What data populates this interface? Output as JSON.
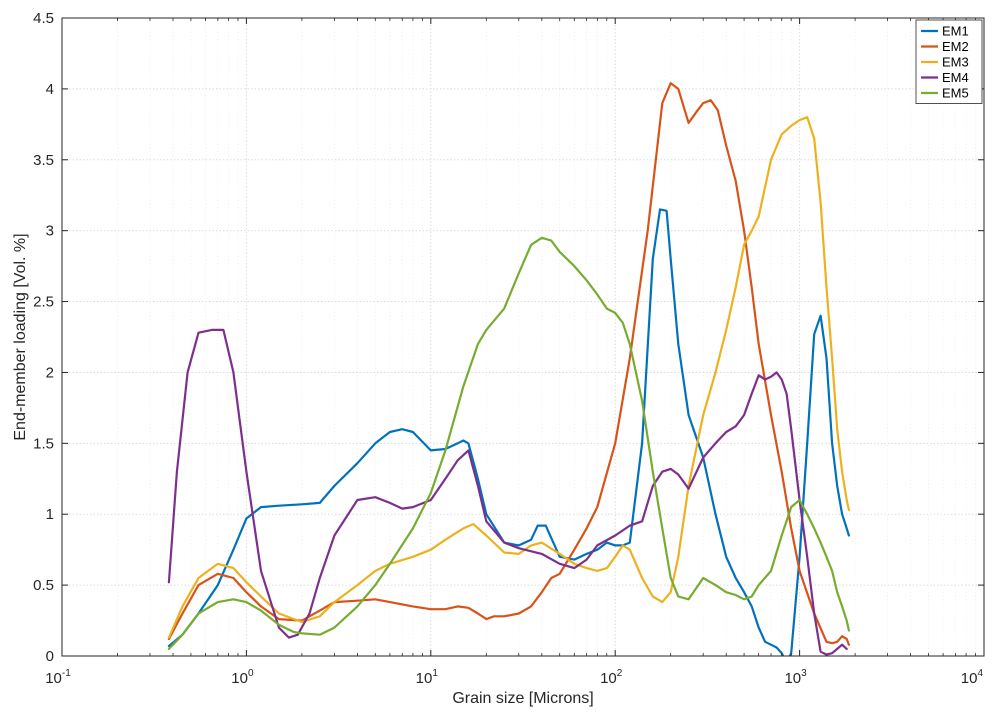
{
  "chart_data": {
    "type": "line",
    "xlabel": "Grain size [Microns]",
    "ylabel": "End-member loading [Vol. %]",
    "xscale": "log",
    "xlim": [
      0.1,
      10000
    ],
    "ylim": [
      0,
      4.5
    ],
    "grid": true,
    "legend_position": "top-right",
    "x_ticks": [
      {
        "base": "10",
        "exp": "-1",
        "value": 0.1
      },
      {
        "base": "10",
        "exp": "0",
        "value": 1
      },
      {
        "base": "10",
        "exp": "1",
        "value": 10
      },
      {
        "base": "10",
        "exp": "2",
        "value": 100
      },
      {
        "base": "10",
        "exp": "3",
        "value": 1000
      },
      {
        "base": "10",
        "exp": "4",
        "value": 10000
      }
    ],
    "y_ticks": [
      "0",
      "0.5",
      "1",
      "1.5",
      "2",
      "2.5",
      "3",
      "3.5",
      "4",
      "4.5"
    ],
    "series": [
      {
        "name": "EM1",
        "color": "#0072BD",
        "x": [
          0.38,
          0.45,
          0.55,
          0.7,
          0.85,
          1.0,
          1.2,
          1.5,
          2.0,
          2.5,
          3.0,
          4.0,
          5.0,
          6.0,
          7.0,
          8.0,
          10.0,
          12.0,
          14.0,
          15.0,
          16.0,
          18.0,
          20.0,
          25.0,
          30.0,
          35.0,
          38.0,
          42.0,
          50.0,
          60.0,
          70.0,
          80.0,
          90.0,
          100.0,
          110.0,
          120.0,
          140.0,
          160.0,
          175.0,
          190.0,
          200.0,
          220.0,
          250.0,
          300.0,
          350.0,
          400.0,
          450.0,
          500.0,
          550.0,
          600.0,
          650.0,
          700.0,
          750.0,
          800.0,
          850.0,
          900.0,
          1000.0,
          1100.0,
          1200.0,
          1300.0,
          1400.0,
          1500.0,
          1600.0,
          1700.0,
          1800.0,
          1850.0
        ],
        "y": [
          0.07,
          0.15,
          0.3,
          0.5,
          0.75,
          0.97,
          1.05,
          1.06,
          1.07,
          1.08,
          1.2,
          1.36,
          1.5,
          1.58,
          1.6,
          1.58,
          1.45,
          1.46,
          1.5,
          1.52,
          1.5,
          1.25,
          1.0,
          0.8,
          0.78,
          0.82,
          0.92,
          0.92,
          0.7,
          0.68,
          0.72,
          0.75,
          0.8,
          0.78,
          0.78,
          0.8,
          1.5,
          2.8,
          3.15,
          3.14,
          2.8,
          2.2,
          1.7,
          1.4,
          1.0,
          0.7,
          0.55,
          0.45,
          0.35,
          0.2,
          0.1,
          0.08,
          0.06,
          0.02,
          -0.05,
          0.02,
          0.7,
          1.5,
          2.27,
          2.4,
          2.1,
          1.5,
          1.2,
          1.0,
          0.9,
          0.85
        ]
      },
      {
        "name": "EM2",
        "color": "#D95319",
        "x": [
          0.38,
          0.45,
          0.55,
          0.7,
          0.85,
          1.0,
          1.2,
          1.5,
          2.0,
          2.5,
          3.0,
          4.0,
          5.0,
          6.0,
          8.0,
          10.0,
          12.0,
          14.0,
          16.0,
          18.0,
          20.0,
          22.0,
          25.0,
          30.0,
          35.0,
          40.0,
          45.0,
          50.0,
          60.0,
          70.0,
          80.0,
          100.0,
          120.0,
          150.0,
          180.0,
          200.0,
          220.0,
          250.0,
          280.0,
          300.0,
          330.0,
          360.0,
          400.0,
          450.0,
          500.0,
          550.0,
          600.0,
          700.0,
          800.0,
          900.0,
          1000.0,
          1200.0,
          1400.0,
          1500.0,
          1600.0,
          1700.0,
          1800.0,
          1850.0
        ],
        "y": [
          0.12,
          0.3,
          0.5,
          0.58,
          0.55,
          0.45,
          0.35,
          0.26,
          0.25,
          0.32,
          0.38,
          0.39,
          0.4,
          0.38,
          0.35,
          0.33,
          0.33,
          0.35,
          0.34,
          0.3,
          0.26,
          0.28,
          0.28,
          0.3,
          0.35,
          0.45,
          0.55,
          0.58,
          0.75,
          0.9,
          1.05,
          1.5,
          2.1,
          3.0,
          3.9,
          4.04,
          4.0,
          3.76,
          3.85,
          3.9,
          3.92,
          3.85,
          3.6,
          3.35,
          3.0,
          2.6,
          2.2,
          1.7,
          1.3,
          0.9,
          0.6,
          0.3,
          0.1,
          0.09,
          0.1,
          0.14,
          0.12,
          0.08
        ]
      },
      {
        "name": "EM3",
        "color": "#EDB120",
        "x": [
          0.38,
          0.45,
          0.55,
          0.7,
          0.85,
          1.0,
          1.2,
          1.5,
          2.0,
          2.5,
          3.0,
          4.0,
          5.0,
          6.0,
          8.0,
          10.0,
          12.0,
          15.0,
          17.0,
          20.0,
          25.0,
          30.0,
          35.0,
          40.0,
          50.0,
          60.0,
          70.0,
          80.0,
          90.0,
          100.0,
          110.0,
          120.0,
          140.0,
          160.0,
          180.0,
          200.0,
          220.0,
          250.0,
          300.0,
          350.0,
          400.0,
          450.0,
          500.0,
          550.0,
          600.0,
          700.0,
          800.0,
          900.0,
          1000.0,
          1100.0,
          1200.0,
          1300.0,
          1400.0,
          1500.0,
          1600.0,
          1700.0,
          1800.0,
          1850.0
        ],
        "y": [
          0.13,
          0.35,
          0.55,
          0.65,
          0.62,
          0.52,
          0.42,
          0.3,
          0.24,
          0.28,
          0.38,
          0.5,
          0.6,
          0.65,
          0.7,
          0.75,
          0.82,
          0.9,
          0.93,
          0.85,
          0.73,
          0.72,
          0.78,
          0.8,
          0.72,
          0.65,
          0.62,
          0.6,
          0.62,
          0.7,
          0.78,
          0.75,
          0.55,
          0.42,
          0.38,
          0.45,
          0.7,
          1.2,
          1.7,
          2.0,
          2.3,
          2.6,
          2.9,
          3.0,
          3.1,
          3.5,
          3.68,
          3.74,
          3.78,
          3.8,
          3.65,
          3.2,
          2.6,
          2.1,
          1.6,
          1.3,
          1.1,
          1.03
        ]
      },
      {
        "name": "EM4",
        "color": "#7E2F8E",
        "x": [
          0.38,
          0.42,
          0.48,
          0.55,
          0.65,
          0.7,
          0.75,
          0.85,
          1.0,
          1.2,
          1.5,
          1.7,
          1.9,
          2.2,
          2.5,
          3.0,
          4.0,
          5.0,
          6.0,
          7.0,
          8.0,
          10.0,
          12.0,
          14.0,
          16.0,
          18.0,
          20.0,
          25.0,
          30.0,
          40.0,
          50.0,
          60.0,
          70.0,
          80.0,
          100.0,
          120.0,
          140.0,
          160.0,
          180.0,
          200.0,
          220.0,
          250.0,
          300.0,
          350.0,
          400.0,
          450.0,
          500.0,
          550.0,
          600.0,
          650.0,
          700.0,
          750.0,
          800.0,
          850.0,
          900.0,
          1000.0,
          1100.0,
          1200.0,
          1300.0,
          1400.0,
          1500.0,
          1600.0,
          1700.0,
          1800.0
        ],
        "y": [
          0.52,
          1.3,
          2.0,
          2.28,
          2.3,
          2.3,
          2.3,
          2.0,
          1.3,
          0.6,
          0.2,
          0.13,
          0.15,
          0.3,
          0.55,
          0.85,
          1.1,
          1.12,
          1.08,
          1.04,
          1.05,
          1.1,
          1.25,
          1.38,
          1.45,
          1.2,
          0.95,
          0.8,
          0.76,
          0.72,
          0.65,
          0.62,
          0.68,
          0.78,
          0.85,
          0.92,
          0.95,
          1.2,
          1.3,
          1.32,
          1.28,
          1.18,
          1.4,
          1.5,
          1.58,
          1.62,
          1.7,
          1.85,
          1.98,
          1.95,
          1.97,
          2.0,
          1.95,
          1.85,
          1.6,
          1.1,
          0.7,
          0.3,
          0.03,
          0.01,
          0.02,
          0.05,
          0.08,
          0.05
        ]
      },
      {
        "name": "EM5",
        "color": "#77AC30",
        "x": [
          0.38,
          0.45,
          0.55,
          0.7,
          0.85,
          1.0,
          1.2,
          1.5,
          1.8,
          2.0,
          2.5,
          3.0,
          4.0,
          5.0,
          6.0,
          8.0,
          10.0,
          12.0,
          15.0,
          18.0,
          20.0,
          25.0,
          30.0,
          35.0,
          40.0,
          45.0,
          50.0,
          60.0,
          70.0,
          80.0,
          90.0,
          100.0,
          110.0,
          120.0,
          140.0,
          160.0,
          180.0,
          200.0,
          220.0,
          250.0,
          300.0,
          350.0,
          400.0,
          450.0,
          500.0,
          550.0,
          600.0,
          700.0,
          800.0,
          900.0,
          1000.0,
          1100.0,
          1200.0,
          1300.0,
          1400.0,
          1500.0,
          1600.0,
          1700.0,
          1800.0,
          1850.0
        ],
        "y": [
          0.05,
          0.15,
          0.3,
          0.38,
          0.4,
          0.38,
          0.32,
          0.22,
          0.17,
          0.16,
          0.15,
          0.2,
          0.35,
          0.5,
          0.65,
          0.9,
          1.15,
          1.45,
          1.9,
          2.2,
          2.3,
          2.45,
          2.7,
          2.9,
          2.95,
          2.93,
          2.85,
          2.75,
          2.65,
          2.55,
          2.45,
          2.42,
          2.35,
          2.2,
          1.8,
          1.3,
          0.9,
          0.55,
          0.42,
          0.4,
          0.55,
          0.5,
          0.45,
          0.43,
          0.4,
          0.42,
          0.5,
          0.6,
          0.85,
          1.05,
          1.1,
          1.0,
          0.9,
          0.8,
          0.7,
          0.6,
          0.45,
          0.35,
          0.25,
          0.18
        ]
      }
    ]
  }
}
